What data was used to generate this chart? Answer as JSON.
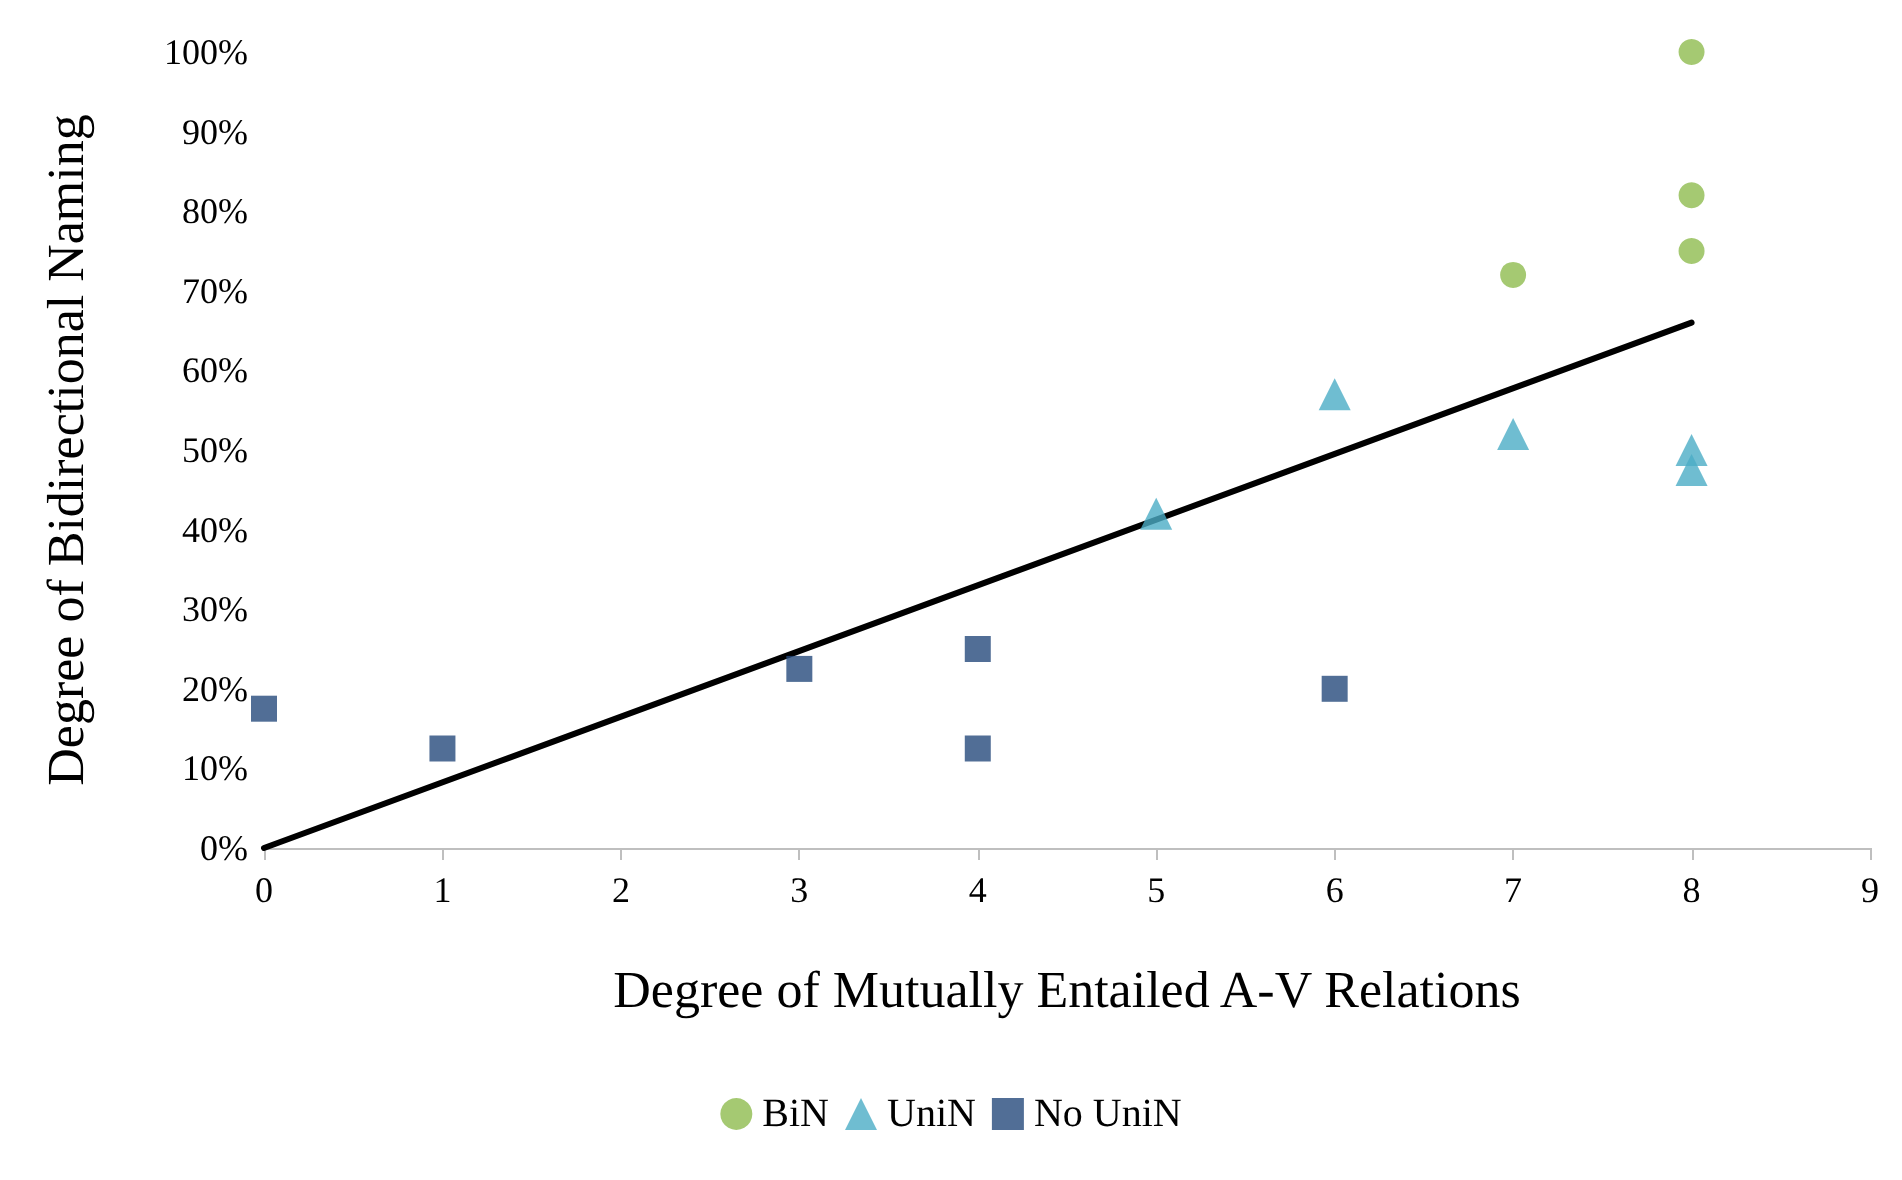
{
  "chart_data": {
    "type": "scatter",
    "xlabel": "Degree of Mutually Entailed A-V Relations",
    "ylabel": "Degree of Bidirectional Naming",
    "xlim": [
      0,
      9
    ],
    "xticks": [
      0,
      1,
      2,
      3,
      4,
      5,
      6,
      7,
      8,
      9
    ],
    "ylim": [
      0,
      100
    ],
    "yticks": [
      {
        "value": 0,
        "label": "0%"
      },
      {
        "value": 10,
        "label": "10%"
      },
      {
        "value": 20,
        "label": "20%"
      },
      {
        "value": 30,
        "label": "30%"
      },
      {
        "value": 40,
        "label": "40%"
      },
      {
        "value": 50,
        "label": "50%"
      },
      {
        "value": 60,
        "label": "60%"
      },
      {
        "value": 70,
        "label": "70%"
      },
      {
        "value": 80,
        "label": "80%"
      },
      {
        "value": 90,
        "label": "90%"
      },
      {
        "value": 100,
        "label": "100%"
      }
    ],
    "grid": false,
    "legend": "bottom",
    "series": [
      {
        "name": "BiN",
        "color": "#8fbc4f",
        "marker": "circle",
        "x": [
          8,
          8,
          8,
          7
        ],
        "values": [
          100,
          82,
          75,
          72
        ]
      },
      {
        "name": "UniN",
        "color": "#4bacc6",
        "marker": "triangle",
        "x": [
          6,
          7,
          5,
          8,
          8
        ],
        "values": [
          57,
          52,
          42,
          50,
          47.5
        ]
      },
      {
        "name": "No UniN",
        "color": "#264a7c",
        "marker": "square",
        "x": [
          0,
          1,
          3,
          4,
          4,
          6
        ],
        "values": [
          17.5,
          12.5,
          22.5,
          25,
          12.5,
          20
        ]
      },
      {
        "type": "line",
        "color": "#000000",
        "marker": "none",
        "line_style": "solid",
        "x": [
          0,
          8
        ],
        "values": [
          0,
          66
        ]
      }
    ]
  }
}
